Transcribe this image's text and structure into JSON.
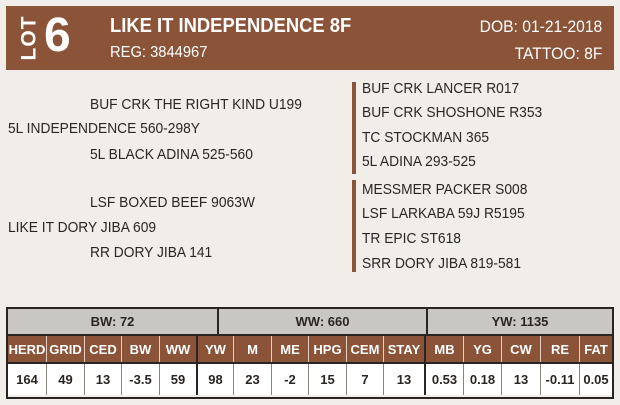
{
  "header": {
    "lot_label": "LOT",
    "lot_number": "6",
    "name": "LIKE IT INDEPENDENCE 8F",
    "reg": "REG: 3844967",
    "dob": "DOB: 01-21-2018",
    "tattoo": "TATTOO: 8F"
  },
  "pedigree": {
    "sire": "5L INDEPENDENCE 560-298Y",
    "sire_sire": "BUF CRK THE RIGHT KIND U199",
    "sire_dam": "5L BLACK ADINA 525-560",
    "dam": "LIKE IT DORY JIBA 609",
    "dam_sire": "LSF BOXED BEEF 9063W",
    "dam_dam": "RR DORY JIBA 141",
    "right_top": [
      "BUF CRK LANCER R017",
      "BUF CRK SHOSHONE R353",
      "TC STOCKMAN 365",
      "5L ADINA 293-525"
    ],
    "right_bottom": [
      "MESSMER PACKER S008",
      "LSF LARKABA 59J R5195",
      "TR EPIC ST618",
      "SRR DORY JIBA 819-581"
    ]
  },
  "performance": {
    "bw": "BW: 72",
    "ww": "WW: 660",
    "yw": "YW: 1135",
    "headers": [
      "HERD",
      "GRID",
      "CED",
      "BW",
      "WW",
      "YW",
      "M",
      "ME",
      "HPG",
      "CEM",
      "STAY",
      "MB",
      "YG",
      "CW",
      "RE",
      "FAT"
    ],
    "values": [
      "164",
      "49",
      "13",
      "-3.5",
      "59",
      "98",
      "23",
      "-2",
      "15",
      "7",
      "13",
      "0.53",
      "0.18",
      "13",
      "-0.11",
      "0.05"
    ]
  },
  "colors": {
    "brand": "#8b5438",
    "background": "#f1eee9",
    "summary_bar": "#c9c7c4"
  }
}
